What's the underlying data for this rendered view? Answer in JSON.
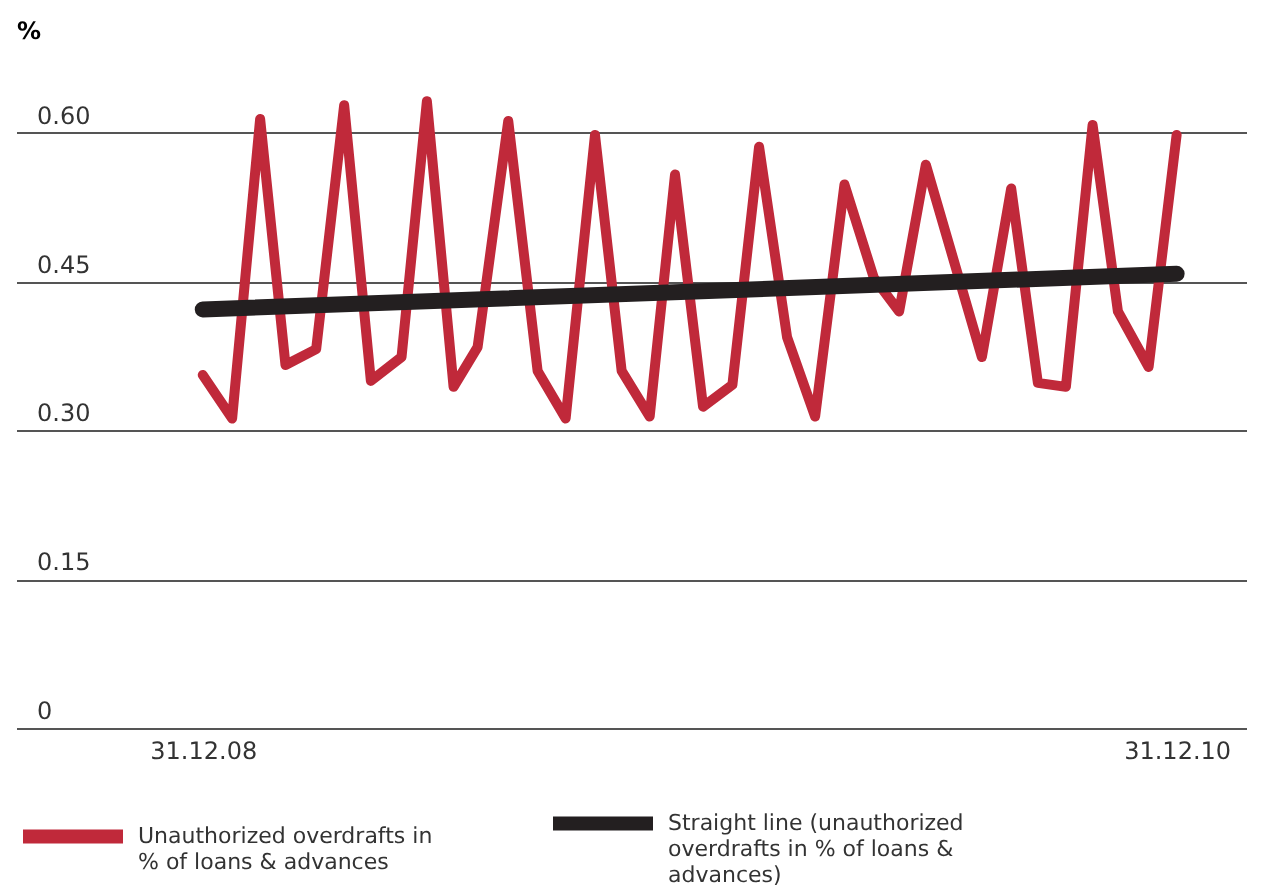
{
  "chart_data": {
    "type": "line",
    "ylabel": "%",
    "xlim": [
      "2008-08-13",
      "2011-02-21"
    ],
    "xticks": [
      {
        "value": "2008-12-31",
        "label": "31.12.08"
      },
      {
        "value": "2010-12-31",
        "label": "31.12.10"
      }
    ],
    "ylim": [
      0,
      0.73
    ],
    "yticks": [
      {
        "value": 0,
        "label": "0"
      },
      0.15,
      {
        "value": 0.3,
        "label": "0.30"
      },
      0.45,
      {
        "value": 0.6,
        "label": "0.60"
      }
    ],
    "grid": "y",
    "legend": "bottom",
    "marker": "none",
    "line_style": "solid",
    "series": [
      {
        "name": "Unauthorized overdrafts in % of loans & advances",
        "color": "#c0293a",
        "x": [
          "2008-12-31",
          "2009-01-22",
          "2009-02-12",
          "2009-03-03",
          "2009-03-26",
          "2009-04-16",
          "2009-05-06",
          "2009-05-29",
          "2009-06-17",
          "2009-07-07",
          "2009-07-25",
          "2009-08-17",
          "2009-09-08",
          "2009-09-29",
          "2009-10-21",
          "2009-11-10",
          "2009-12-01",
          "2009-12-20",
          "2010-01-10",
          "2010-02-01",
          "2010-02-21",
          "2010-03-14",
          "2010-04-04",
          "2010-04-26",
          "2010-05-18",
          "2010-06-06",
          "2010-06-26",
          "2010-08-07",
          "2010-08-29",
          "2010-09-18",
          "2010-10-09",
          "2010-10-29",
          "2010-11-17",
          "2010-12-10",
          "2010-12-31"
        ],
        "values": [
          0.356,
          0.312,
          0.614,
          0.366,
          0.382,
          0.628,
          0.35,
          0.374,
          0.632,
          0.344,
          0.384,
          0.612,
          0.36,
          0.312,
          0.598,
          0.36,
          0.314,
          0.558,
          0.324,
          0.346,
          0.586,
          0.394,
          0.314,
          0.548,
          0.454,
          0.42,
          0.568,
          0.374,
          0.544,
          0.348,
          0.344,
          0.608,
          0.42,
          0.364,
          0.598
        ]
      },
      {
        "name": "Straight line (unauthorized overdrafts in % of loans & advances)",
        "color": "#231f20",
        "x": [
          "2008-12-31",
          "2010-12-31"
        ],
        "values": [
          0.422,
          0.458
        ]
      }
    ]
  }
}
